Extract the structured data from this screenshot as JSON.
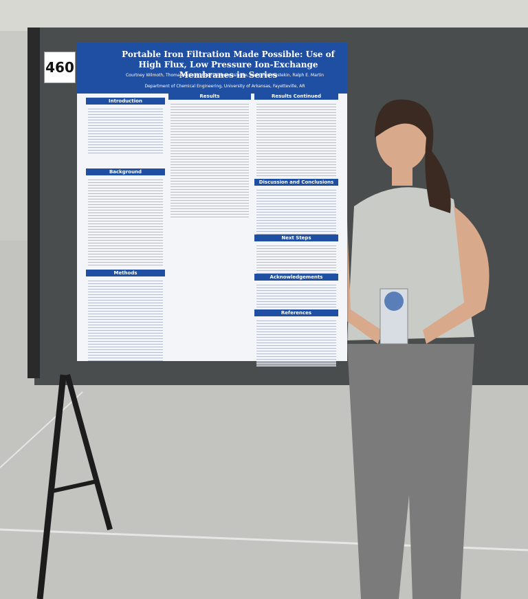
{
  "booth_number": "460",
  "poster": {
    "title": "Portable Iron Filtration Made Possible: Use of High Flux, Low Pressure Ion-Exchange Membranes in Series",
    "authors": "Courtney Wilmoth, Thomas McKean, Rasil Wickramasinghe, and Jamie Hestekin, Ralph E. Martin",
    "department": "Department of Chemical Engineering, University of Arkansas, Fayetteville, AR",
    "sections": [
      "Introduction",
      "Results",
      "Results Continued",
      "Background",
      "Discussion and Conclusions",
      "Methods",
      "Next Steps",
      "Acknowledgements",
      "References"
    ]
  }
}
